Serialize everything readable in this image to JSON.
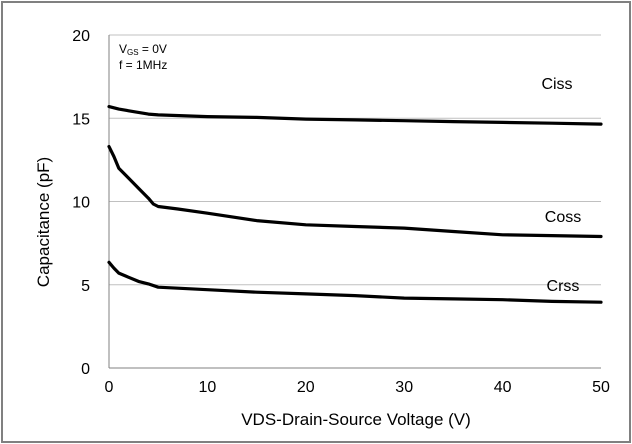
{
  "chart_data": {
    "type": "line",
    "title": "",
    "xlabel": "VDS-Drain-Source Voltage (V)",
    "ylabel": "Capacitance (pF)",
    "xlim": [
      0,
      50
    ],
    "ylim": [
      0,
      20
    ],
    "x_ticks": [
      "0",
      "10",
      "20",
      "30",
      "40",
      "50"
    ],
    "y_ticks": [
      "0",
      "5",
      "10",
      "15",
      "20"
    ],
    "grid": "horizontal",
    "conditions": {
      "vgs_main": "V",
      "vgs_sub": "GS",
      "vgs_value": " = 0V",
      "freq": "f = 1MHz"
    },
    "series": [
      {
        "name": "Ciss",
        "x": [
          0,
          1,
          2,
          3,
          4,
          5,
          10,
          15,
          20,
          25,
          30,
          35,
          40,
          45,
          50
        ],
        "y": [
          15.7,
          15.55,
          15.45,
          15.35,
          15.25,
          15.2,
          15.1,
          15.05,
          14.95,
          14.9,
          14.85,
          14.8,
          14.75,
          14.7,
          14.65
        ]
      },
      {
        "name": "Coss",
        "x": [
          0,
          0.5,
          1,
          2,
          3,
          4,
          4.5,
          5,
          7,
          10,
          15,
          20,
          25,
          30,
          35,
          40,
          45,
          50
        ],
        "y": [
          13.3,
          12.7,
          12.0,
          11.4,
          10.8,
          10.2,
          9.85,
          9.7,
          9.55,
          9.3,
          8.85,
          8.6,
          8.5,
          8.4,
          8.2,
          8.0,
          7.95,
          7.9
        ]
      },
      {
        "name": "Crss",
        "x": [
          0,
          0.5,
          1,
          2,
          3,
          4,
          5,
          10,
          15,
          20,
          25,
          30,
          35,
          40,
          45,
          50
        ],
        "y": [
          6.35,
          6.0,
          5.7,
          5.45,
          5.2,
          5.05,
          4.85,
          4.7,
          4.55,
          4.45,
          4.35,
          4.2,
          4.15,
          4.1,
          4.0,
          3.95
        ]
      }
    ],
    "colors": {
      "line": "#000000",
      "grid": "#c0c0c0",
      "frame": "#808080",
      "axis": "#808080"
    }
  }
}
